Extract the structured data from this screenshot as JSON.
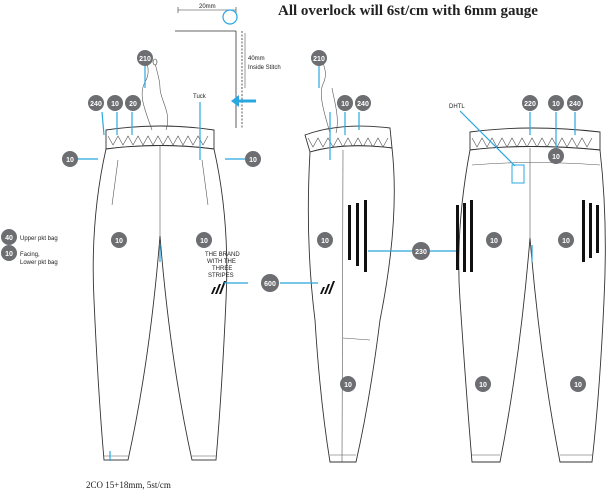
{
  "title": "All overlock will 6st/cm with 6mm gauge",
  "detail": {
    "width_label": "20mm",
    "height_label": "40mm",
    "stitch_label": "Inside Stitch"
  },
  "front": {
    "tuck_label": "Tuck",
    "upper_pocket_label": "Upper pkt bag",
    "facing_label": "Facing,",
    "lower_pocket_label": "Lower pkt bag",
    "hem_note": "2CO 15+18mm, 5st/cm"
  },
  "back": {
    "dhtl_label": "DHTL"
  },
  "logo": {
    "brand_lines": [
      "THE BRAND",
      "WITH THE",
      "THREE",
      "STRIPES"
    ]
  },
  "badges": {
    "drawcord": "210",
    "waistband_a": "240",
    "waistband_b": "10",
    "waistband_c": "20",
    "waistband_back": "220",
    "body": "10",
    "pocket_bag": "40",
    "logo_print": "600",
    "stripes": "230"
  },
  "colors": {
    "badge_fill": "#6d6e71",
    "pointer": "#29a8e0",
    "stripe": "#111111"
  }
}
